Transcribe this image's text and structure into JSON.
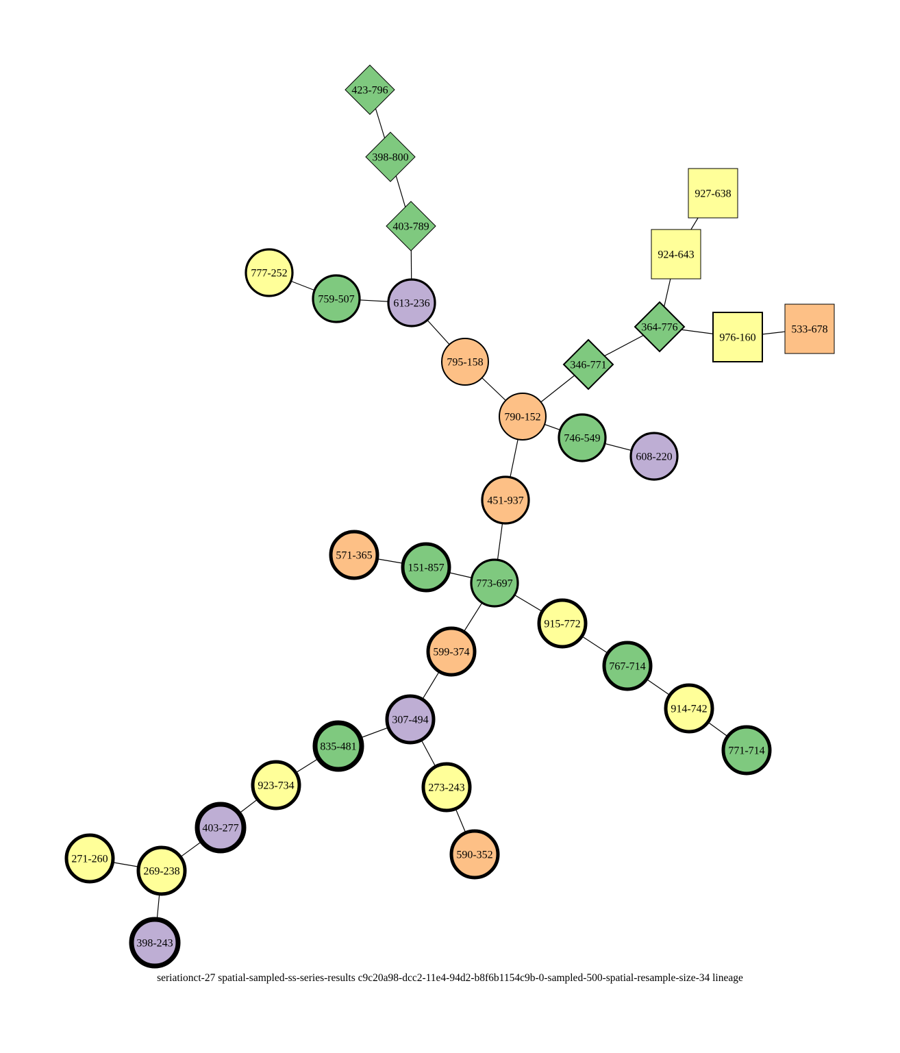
{
  "caption": "seriationct-27  spatial-sampled-ss-series-results  c9c20a98-dcc2-11e4-94d2-b8f6b1154c9b-0-sampled-500-spatial-resample-size-34  lineage",
  "colors": {
    "green": "#7fc97f",
    "purple": "#beaed4",
    "orange": "#fdc086",
    "yellow": "#ffff99",
    "stroke": "#000000"
  },
  "nodes": [
    {
      "id": "n423-796",
      "label": "423-796",
      "shape": "diamond",
      "color": "green",
      "weight": "thin"
    },
    {
      "id": "n398-800",
      "label": "398-800",
      "shape": "diamond",
      "color": "green",
      "weight": "thin"
    },
    {
      "id": "n403-789",
      "label": "403-789",
      "shape": "diamond",
      "color": "green",
      "weight": "thin"
    },
    {
      "id": "n927-638",
      "label": "927-638",
      "shape": "square",
      "color": "yellow",
      "weight": "thin"
    },
    {
      "id": "n924-643",
      "label": "924-643",
      "shape": "square",
      "color": "yellow",
      "weight": "thin"
    },
    {
      "id": "n777-252",
      "label": "777-252",
      "shape": "circle",
      "color": "yellow",
      "weight": "medium"
    },
    {
      "id": "n759-507",
      "label": "759-507",
      "shape": "circle",
      "color": "green",
      "weight": "medium"
    },
    {
      "id": "n613-236",
      "label": "613-236",
      "shape": "circle",
      "color": "purple",
      "weight": "medium"
    },
    {
      "id": "n364-776",
      "label": "364-776",
      "shape": "diamond",
      "color": "green",
      "weight": "semi"
    },
    {
      "id": "n976-160",
      "label": "976-160",
      "shape": "square",
      "color": "yellow",
      "weight": "semi"
    },
    {
      "id": "n533-678",
      "label": "533-678",
      "shape": "square",
      "color": "orange",
      "weight": "thin"
    },
    {
      "id": "n795-158",
      "label": "795-158",
      "shape": "circle",
      "color": "orange",
      "weight": "semi"
    },
    {
      "id": "n346-771",
      "label": "346-771",
      "shape": "diamond",
      "color": "green",
      "weight": "semi"
    },
    {
      "id": "n790-152",
      "label": "790-152",
      "shape": "circle",
      "color": "orange",
      "weight": "semi"
    },
    {
      "id": "n746-549",
      "label": "746-549",
      "shape": "circle",
      "color": "green",
      "weight": "medium"
    },
    {
      "id": "n608-220",
      "label": "608-220",
      "shape": "circle",
      "color": "purple",
      "weight": "medium"
    },
    {
      "id": "n451-937",
      "label": "451-937",
      "shape": "circle",
      "color": "orange",
      "weight": "medium"
    },
    {
      "id": "n571-365",
      "label": "571-365",
      "shape": "circle",
      "color": "orange",
      "weight": "thick"
    },
    {
      "id": "n151-857",
      "label": "151-857",
      "shape": "circle",
      "color": "green",
      "weight": "thick"
    },
    {
      "id": "n773-697",
      "label": "773-697",
      "shape": "circle",
      "color": "green",
      "weight": "medium"
    },
    {
      "id": "n915-772",
      "label": "915-772",
      "shape": "circle",
      "color": "yellow",
      "weight": "thick"
    },
    {
      "id": "n599-374",
      "label": "599-374",
      "shape": "circle",
      "color": "orange",
      "weight": "thick"
    },
    {
      "id": "n767-714",
      "label": "767-714",
      "shape": "circle",
      "color": "green",
      "weight": "thick"
    },
    {
      "id": "n914-742",
      "label": "914-742",
      "shape": "circle",
      "color": "yellow",
      "weight": "thick"
    },
    {
      "id": "n307-494",
      "label": "307-494",
      "shape": "circle",
      "color": "purple",
      "weight": "thick"
    },
    {
      "id": "n771-714",
      "label": "771-714",
      "shape": "circle",
      "color": "green",
      "weight": "thick"
    },
    {
      "id": "n835-481",
      "label": "835-481",
      "shape": "circle",
      "color": "green",
      "weight": "xthick"
    },
    {
      "id": "n923-734",
      "label": "923-734",
      "shape": "circle",
      "color": "yellow",
      "weight": "thick"
    },
    {
      "id": "n273-243",
      "label": "273-243",
      "shape": "circle",
      "color": "yellow",
      "weight": "thick"
    },
    {
      "id": "n403-277",
      "label": "403-277",
      "shape": "circle",
      "color": "purple",
      "weight": "xthick"
    },
    {
      "id": "n590-352",
      "label": "590-352",
      "shape": "circle",
      "color": "orange",
      "weight": "thick"
    },
    {
      "id": "n271-260",
      "label": "271-260",
      "shape": "circle",
      "color": "yellow",
      "weight": "thick"
    },
    {
      "id": "n269-238",
      "label": "269-238",
      "shape": "circle",
      "color": "yellow",
      "weight": "thick"
    },
    {
      "id": "n398-243",
      "label": "398-243",
      "shape": "circle",
      "color": "purple",
      "weight": "xthick"
    }
  ],
  "edges": [
    [
      "n423-796",
      "n398-800"
    ],
    [
      "n398-800",
      "n403-789"
    ],
    [
      "n403-789",
      "n613-236"
    ],
    [
      "n777-252",
      "n759-507"
    ],
    [
      "n759-507",
      "n613-236"
    ],
    [
      "n613-236",
      "n795-158"
    ],
    [
      "n795-158",
      "n790-152"
    ],
    [
      "n927-638",
      "n924-643"
    ],
    [
      "n924-643",
      "n364-776"
    ],
    [
      "n364-776",
      "n976-160"
    ],
    [
      "n976-160",
      "n533-678"
    ],
    [
      "n364-776",
      "n346-771"
    ],
    [
      "n346-771",
      "n790-152"
    ],
    [
      "n790-152",
      "n746-549"
    ],
    [
      "n746-549",
      "n608-220"
    ],
    [
      "n790-152",
      "n451-937"
    ],
    [
      "n451-937",
      "n773-697"
    ],
    [
      "n571-365",
      "n151-857"
    ],
    [
      "n151-857",
      "n773-697"
    ],
    [
      "n773-697",
      "n915-772"
    ],
    [
      "n915-772",
      "n767-714"
    ],
    [
      "n767-714",
      "n914-742"
    ],
    [
      "n914-742",
      "n771-714"
    ],
    [
      "n773-697",
      "n599-374"
    ],
    [
      "n599-374",
      "n307-494"
    ],
    [
      "n307-494",
      "n835-481"
    ],
    [
      "n835-481",
      "n923-734"
    ],
    [
      "n923-734",
      "n403-277"
    ],
    [
      "n403-277",
      "n269-238"
    ],
    [
      "n271-260",
      "n269-238"
    ],
    [
      "n269-238",
      "n398-243"
    ],
    [
      "n307-494",
      "n273-243"
    ],
    [
      "n273-243",
      "n590-352"
    ]
  ]
}
